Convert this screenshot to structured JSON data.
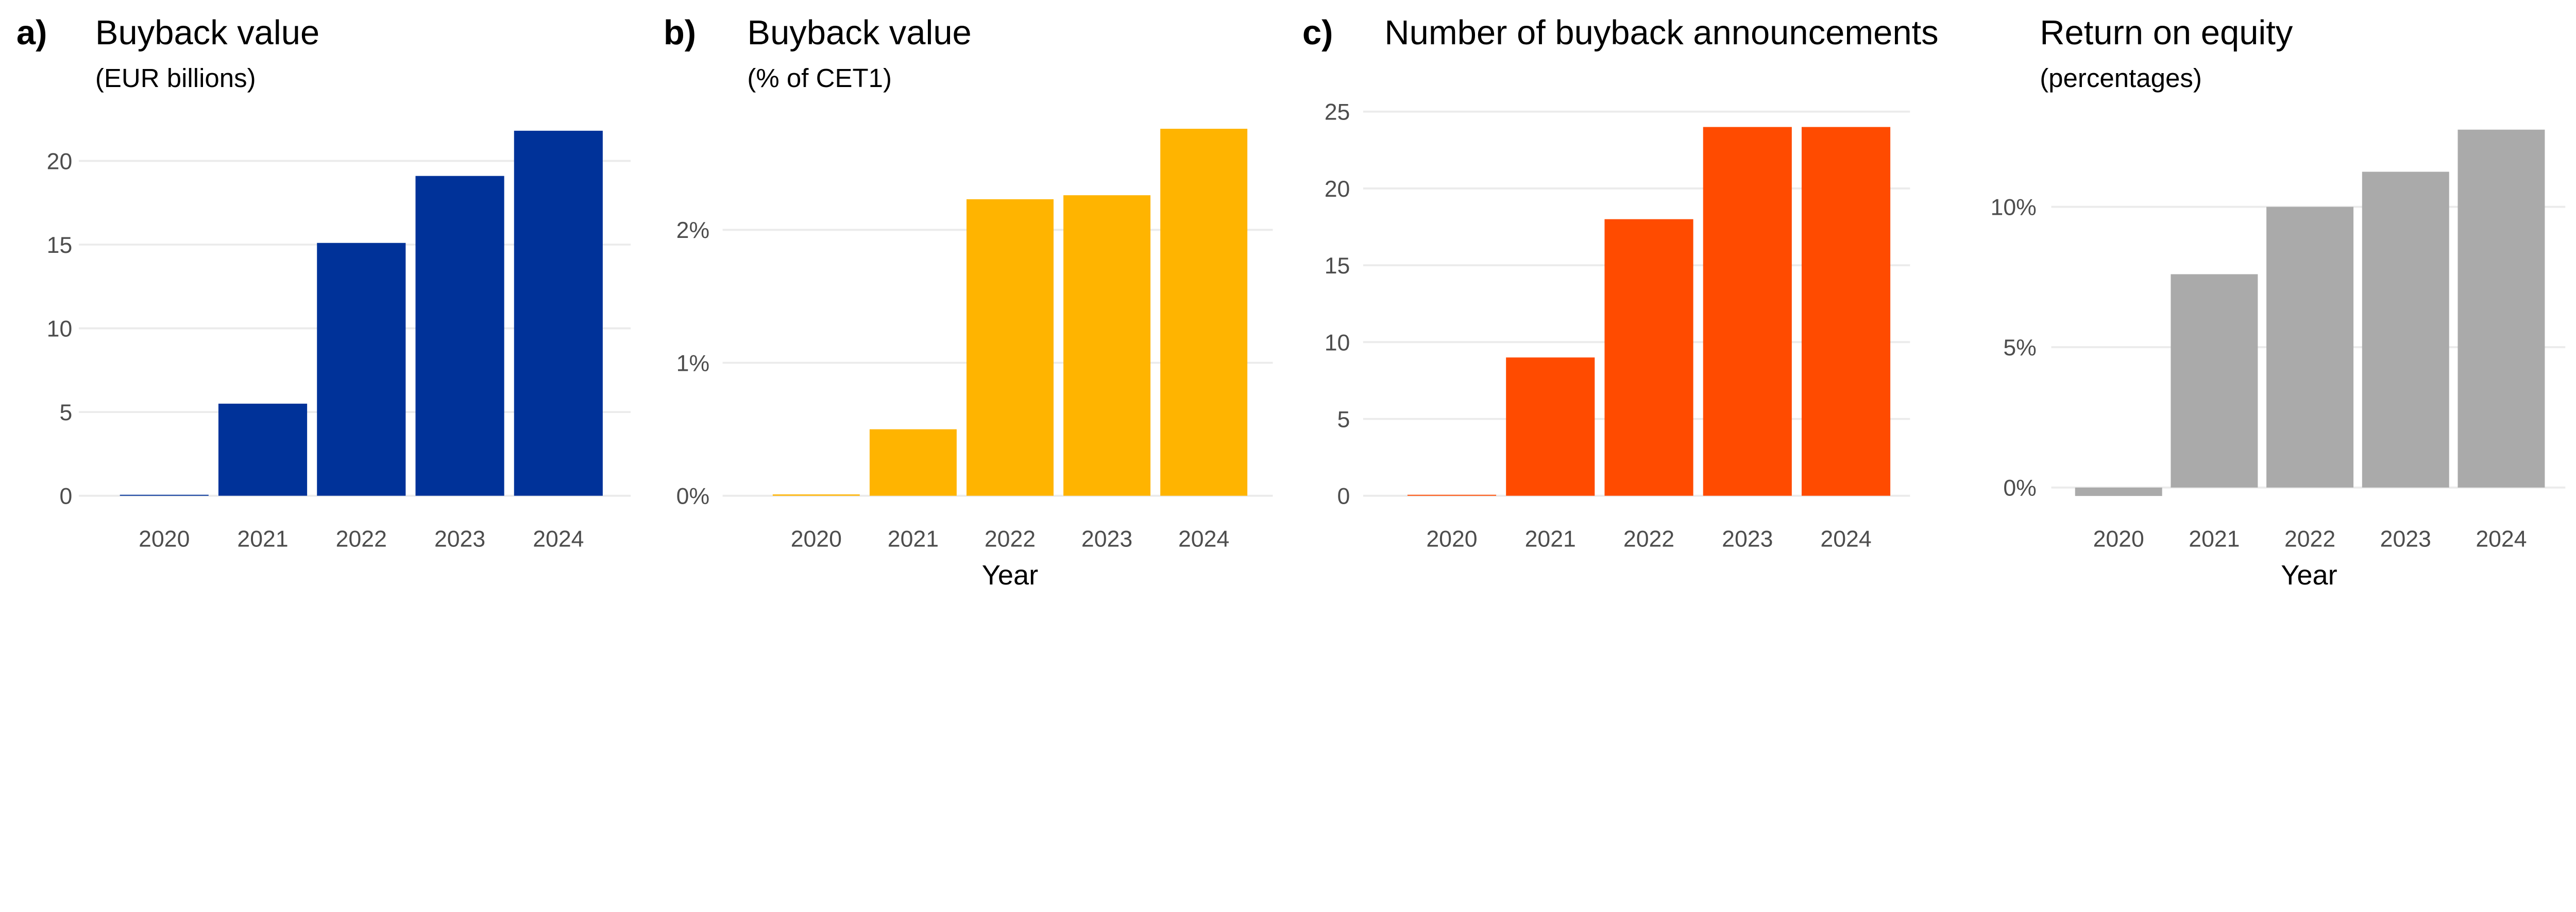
{
  "chart_data": [
    {
      "type": "bar",
      "panel_label": "a)",
      "title": "Buyback value",
      "subtitle": "(EUR billions)",
      "xlabel": "",
      "categories": [
        "2020",
        "2021",
        "2022",
        "2023",
        "2024"
      ],
      "values": [
        0.05,
        5.5,
        15.1,
        19.1,
        21.8
      ],
      "yticks": [
        0,
        5,
        10,
        15,
        20
      ],
      "ytick_labels": [
        "0",
        "5",
        "10",
        "15",
        "20"
      ],
      "ylim": [
        0,
        21.8
      ],
      "grid": true,
      "color": "#003299"
    },
    {
      "type": "bar",
      "panel_label": "b)",
      "title": "Buyback value",
      "subtitle": "(% of CET1)",
      "xlabel": "Year",
      "categories": [
        "2020",
        "2021",
        "2022",
        "2023",
        "2024"
      ],
      "values": [
        0.01,
        0.5,
        2.23,
        2.26,
        2.76
      ],
      "yticks": [
        0,
        1,
        2
      ],
      "ytick_labels": [
        "0%",
        "1%",
        "2%"
      ],
      "ylim": [
        0,
        2.76
      ],
      "grid": true,
      "color": "#FFB400"
    },
    {
      "type": "bar",
      "panel_label": "c)",
      "title": "Number of buyback announcements",
      "subtitle": "",
      "xlabel": "",
      "categories": [
        "2020",
        "2021",
        "2022",
        "2023",
        "2024"
      ],
      "values": [
        0,
        9,
        18,
        24,
        24
      ],
      "yticks": [
        0,
        5,
        10,
        15,
        20,
        25
      ],
      "ytick_labels": [
        "0",
        "5",
        "10",
        "15",
        "20",
        "25"
      ],
      "ylim": [
        0,
        25
      ],
      "grid": true,
      "color": "#FF4B00"
    },
    {
      "type": "bar",
      "panel_label": "",
      "title": "Return on equity",
      "subtitle": "(percentages)",
      "xlabel": "Year",
      "categories": [
        "2020",
        "2021",
        "2022",
        "2023",
        "2024"
      ],
      "values": [
        -0.3,
        7.6,
        10.0,
        11.25,
        12.75
      ],
      "yticks": [
        0,
        5,
        10
      ],
      "ytick_labels": [
        "0%",
        "5%",
        "10%"
      ],
      "ylim": [
        -0.3,
        12.75
      ],
      "grid": true,
      "color": "#AAAAAA"
    }
  ]
}
